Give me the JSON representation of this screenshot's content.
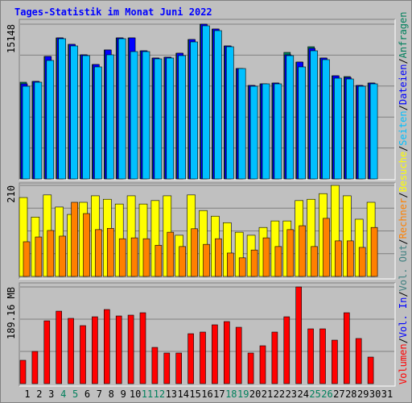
{
  "chart_data": [
    {
      "type": "bar",
      "title": "Tages-Statistik im Monat Juni 2022",
      "title_color": "#0000ff",
      "ylim": [
        0,
        15148
      ],
      "yticks": [
        15148
      ],
      "series": [
        {
          "name": "Anfragen",
          "color": "#00805c",
          "values": [
            9468,
            9547,
            11993,
            13808,
            13176,
            12151,
            11204,
            12624,
            13808,
            13808,
            12545,
            11835,
            11914,
            12308,
            13650,
            15148,
            14675,
            13019,
            10809,
            9152,
            9310,
            9389,
            12387,
            11440,
            12940,
            11835,
            10099,
            10020,
            9152,
            9389,
            null
          ]
        },
        {
          "name": "Dateien",
          "color": "#0000ff",
          "values": [
            9310,
            9547,
            11993,
            13808,
            13176,
            12151,
            11204,
            12624,
            13808,
            13808,
            12545,
            11835,
            11914,
            12308,
            13650,
            15148,
            14675,
            13019,
            10809,
            9152,
            9310,
            9389,
            12151,
            11440,
            12782,
            11835,
            10099,
            9941,
            9152,
            9389,
            null
          ]
        },
        {
          "name": "Seiten",
          "color": "#00c0ff",
          "values": [
            9074,
            9468,
            11598,
            13729,
            13019,
            12072,
            10967,
            12151,
            13729,
            12466,
            12466,
            11756,
            11835,
            12072,
            13413,
            14991,
            14518,
            12940,
            10809,
            9074,
            9310,
            9310,
            12072,
            10967,
            12545,
            11677,
            9863,
            9784,
            9074,
            9310,
            null
          ]
        }
      ]
    },
    {
      "type": "bar",
      "ylim": [
        0,
        210
      ],
      "yticks": [
        210
      ],
      "series": [
        {
          "name": "Besuche",
          "color": "#ffff00",
          "values": [
            182,
            137,
            188,
            160,
            143,
            171,
            186,
            178,
            167,
            186,
            167,
            175,
            186,
            95,
            188,
            152,
            139,
            124,
            102,
            95,
            113,
            128,
            128,
            175,
            178,
            191,
            210,
            186,
            132,
            171,
            null
          ]
        },
        {
          "name": "Rechner",
          "color": "#ff8000",
          "values": [
            80,
            91,
            106,
            93,
            171,
            145,
            108,
            111,
            87,
            89,
            87,
            72,
            102,
            69,
            110,
            74,
            87,
            54,
            43,
            61,
            89,
            69,
            108,
            117,
            69,
            134,
            82,
            82,
            67,
            113,
            null
          ]
        }
      ]
    },
    {
      "type": "bar",
      "ylim": [
        0,
        189.16
      ],
      "yticks": [
        {
          "value": 189.16,
          "label": "189.16 MB"
        }
      ],
      "categories": [
        "1",
        "2",
        "3",
        "4",
        "5",
        "6",
        "7",
        "8",
        "9",
        "10",
        "11",
        "12",
        "13",
        "14",
        "15",
        "16",
        "17",
        "18",
        "19",
        "20",
        "21",
        "22",
        "23",
        "24",
        "25",
        "26",
        "27",
        "28",
        "29",
        "30",
        "31"
      ],
      "category_colors": [
        "#000000",
        "#000000",
        "#000000",
        "#00805c",
        "#00805c",
        "#000000",
        "#000000",
        "#000000",
        "#000000",
        "#000000",
        "#00805c",
        "#00805c",
        "#000000",
        "#000000",
        "#000000",
        "#000000",
        "#000000",
        "#00805c",
        "#00805c",
        "#000000",
        "#000000",
        "#000000",
        "#000000",
        "#000000",
        "#00805c",
        "#00805c",
        "#000000",
        "#000000",
        "#000000",
        "#000000",
        "#000000"
      ],
      "series": [
        {
          "name": "Volumen",
          "color": "#ff0000",
          "values": [
            45.7,
            63.0,
            122.9,
            141.8,
            127.7,
            113.5,
            130.8,
            145.0,
            132.4,
            134.0,
            138.7,
            70.9,
            59.9,
            59.9,
            97.7,
            100.9,
            115.1,
            121.4,
            110.3,
            59.9,
            74.1,
            100.9,
            130.8,
            189.16,
            107.2,
            107.2,
            85.1,
            138.7,
            88.3,
            52.0,
            null
          ]
        }
      ],
      "other_legend": [
        {
          "name": "Vol. In",
          "color": "#0000ff"
        },
        {
          "name": "Vol. Out",
          "color": "#408080"
        }
      ],
      "separator": "/"
    }
  ]
}
